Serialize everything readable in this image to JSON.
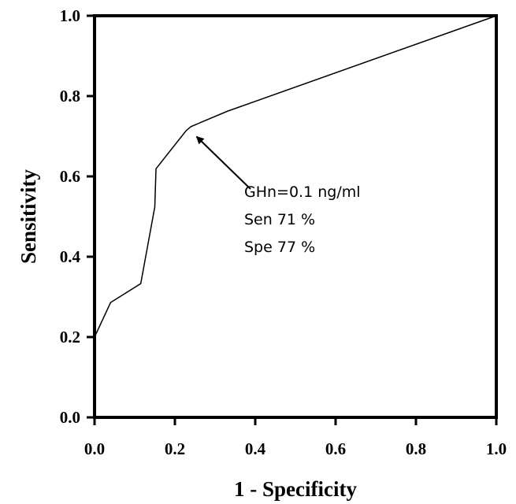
{
  "chart_data": {
    "type": "line",
    "title": "",
    "xlabel": "1 - Specificity",
    "ylabel": "Sensitivity",
    "xlim": [
      0.0,
      1.0
    ],
    "ylim": [
      0.0,
      1.0
    ],
    "x_ticks": [
      "0.0",
      "0.2",
      "0.4",
      "0.6",
      "0.8",
      "1.0"
    ],
    "y_ticks": [
      "0.0",
      "0.2",
      "0.4",
      "0.6",
      "0.8",
      "1.0"
    ],
    "grid": false,
    "legend": null,
    "series": [
      {
        "color": "#000000",
        "x": [
          0.0,
          0.04,
          0.115,
          0.15,
          0.153,
          0.228,
          0.24,
          0.33,
          1.0
        ],
        "y": [
          0.2,
          0.286,
          0.333,
          0.524,
          0.619,
          0.714,
          0.724,
          0.762,
          1.0
        ]
      }
    ],
    "annotation": {
      "lines": [
        "GHn=0.1 ng/ml",
        "Sen 71 %",
        "Spe 77 %"
      ],
      "points_to": {
        "x": 0.25,
        "y": 0.705
      }
    }
  }
}
